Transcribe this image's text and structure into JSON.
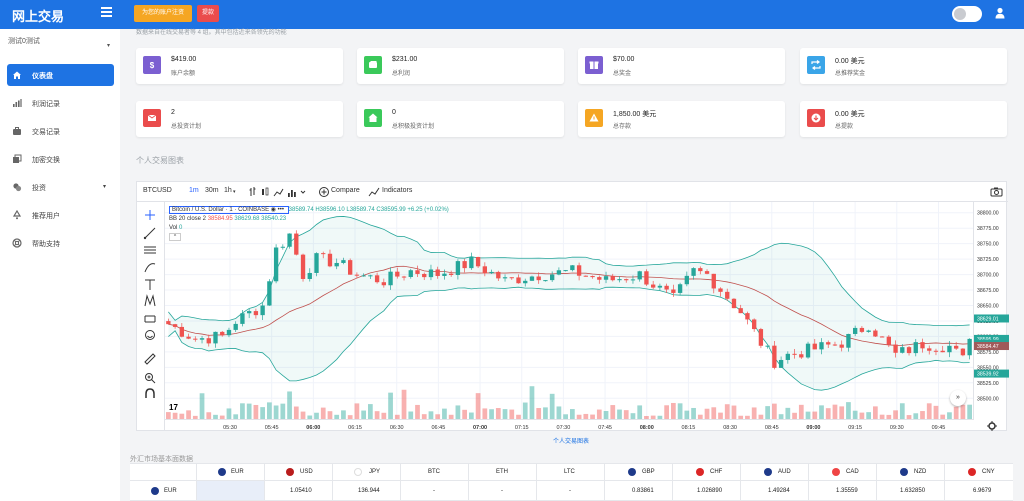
{
  "header": {
    "brand": "网上交易",
    "deposit_button": "为您的账户注资",
    "withdraw_button": "提款"
  },
  "sidebar": {
    "account": "测试0测试",
    "items": [
      {
        "label": "仪表盘",
        "icon": "dashboard-icon",
        "active": true
      },
      {
        "label": "利润记录",
        "icon": "bar-chart-icon"
      },
      {
        "label": "交易记录",
        "icon": "briefcase-icon"
      },
      {
        "label": "加密交换",
        "icon": "exchange-icon"
      },
      {
        "label": "投资",
        "icon": "coins-icon",
        "has_submenu": true
      },
      {
        "label": "推荐用户",
        "icon": "recycle-icon"
      },
      {
        "label": "帮助支持",
        "icon": "help-icon"
      }
    ]
  },
  "info_text": "数据来自在线交易者等 4 组。其中包括近来各领先的功能",
  "cards": [
    {
      "value": "$419.00",
      "label": "账户余额",
      "color": "#7b5fd1",
      "icon": "dollar-icon"
    },
    {
      "value": "$231.00",
      "label": "总利润",
      "color": "#3ac95a",
      "icon": "money-icon"
    },
    {
      "value": "$70.00",
      "label": "总奖金",
      "color": "#7b5fd1",
      "icon": "gift-icon"
    },
    {
      "value": "0.00 美元",
      "label": "总推荐奖金",
      "color": "#3aa5e8",
      "icon": "retweet-icon"
    },
    {
      "value": "2",
      "label": "总投资计划",
      "color": "#ea4c4c",
      "icon": "mail-icon"
    },
    {
      "value": "0",
      "label": "总积极投资计划",
      "color": "#3ac95a",
      "icon": "home-icon"
    },
    {
      "value": "1,850.00 美元",
      "label": "总存款",
      "color": "#f5a623",
      "icon": "warning-icon"
    },
    {
      "value": "0.00 美元",
      "label": "总提款",
      "color": "#ea4c4c",
      "icon": "download-icon"
    }
  ],
  "chart_section_title": "个人交易图表",
  "chart_toolbar": {
    "symbol": "BTCUSD",
    "intervals": [
      "1m",
      "30m",
      "1h"
    ],
    "compare": "Compare",
    "indicators": "Indicators"
  },
  "chart_legend": {
    "title": "Bitcoin / U.S. Dollar",
    "interval": "1",
    "exchange": "COINBASE",
    "ohlc": "38589.74 H38596.10 L38589.74 C38595.99 +6.25 (+0.02%)",
    "bb": "BB 20 close 2",
    "bb_values": [
      "38584.95",
      "38629.68",
      "38540.23"
    ],
    "vol": "Vol",
    "vol_value": "0"
  },
  "chart_caption": "个人交易图表",
  "chart_data": {
    "type": "candlestick",
    "title": "Bitcoin / U.S. Dollar · 1 · COINBASE",
    "ylim": [
      38487.5,
      38812.5
    ],
    "y_ticks": [
      38500,
      38525,
      38550,
      38575,
      38600,
      38625,
      38650,
      38675,
      38700,
      38725,
      38750,
      38775,
      38800
    ],
    "y_tick_labels": [
      "38500.00",
      "38525.00",
      "38550.00",
      "38575.00",
      "38600.00",
      "38625.00",
      "38650.00",
      "38675.00",
      "38700.00",
      "38725.00",
      "38750.00",
      "38775.00",
      "38800.00"
    ],
    "x_tick_labels": [
      "05:30",
      "05:45",
      "06:00",
      "06:15",
      "06:30",
      "06:45",
      "07:00",
      "07:15",
      "07:30",
      "07:45",
      "08:00",
      "08:15",
      "08:30",
      "08:45",
      "09:00",
      "09:15",
      "09:30",
      "09:45"
    ],
    "price_tags": [
      {
        "value": 38629.01,
        "label": "38629.01",
        "color": "#26a69a"
      },
      {
        "value": 38595.99,
        "label": "38595.99",
        "color": "#26a69a"
      },
      {
        "value": 38588.13,
        "label": "38588.13",
        "color": "#26a69a"
      },
      {
        "value": 38584.47,
        "label": "38584.47",
        "color": "#a05a5a"
      },
      {
        "value": 38539.92,
        "label": "38539.92",
        "color": "#26a69a"
      }
    ],
    "bull_color": "#26a69a",
    "bear_color": "#ef5350",
    "path": [
      [
        0,
        38620
      ],
      [
        4,
        38596
      ],
      [
        8,
        38600
      ],
      [
        10,
        38625
      ],
      [
        14,
        38650
      ],
      [
        16,
        38740
      ],
      [
        18,
        38765
      ],
      [
        20,
        38700
      ],
      [
        22,
        38725
      ],
      [
        25,
        38720
      ],
      [
        28,
        38700
      ],
      [
        32,
        38690
      ],
      [
        36,
        38706
      ],
      [
        40,
        38701
      ],
      [
        45,
        38720
      ],
      [
        50,
        38690
      ],
      [
        55,
        38700
      ],
      [
        60,
        38705
      ],
      [
        65,
        38690
      ],
      [
        70,
        38700
      ],
      [
        75,
        38660
      ],
      [
        78,
        38705
      ],
      [
        80,
        38700
      ],
      [
        85,
        38640
      ],
      [
        88,
        38590
      ],
      [
        90,
        38560
      ],
      [
        92,
        38570
      ],
      [
        96,
        38580
      ],
      [
        100,
        38590
      ],
      [
        104,
        38620
      ],
      [
        108,
        38570
      ],
      [
        112,
        38588
      ],
      [
        116,
        38584
      ],
      [
        120,
        38540
      ]
    ]
  },
  "fx_table": {
    "title": "外汇市场基本面数据",
    "headers": [
      "EUR",
      "USD",
      "JPY",
      "BTC",
      "ETH",
      "LTC",
      "GBP",
      "CHF",
      "AUD",
      "CAD",
      "NZD",
      "CNY"
    ],
    "row": {
      "label": "EUR",
      "values": [
        "",
        "1.05410",
        "136.944",
        "-",
        "-",
        "-",
        "0.83861",
        "1.026890",
        "1.49284",
        "1.35559",
        "1.632850",
        "6.9679"
      ]
    }
  }
}
